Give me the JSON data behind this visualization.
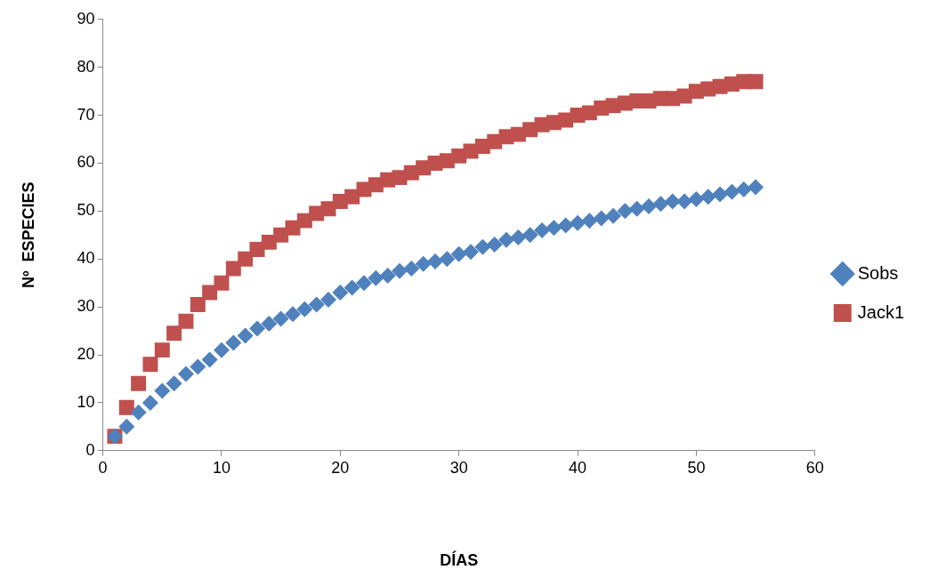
{
  "chart_data": {
    "type": "scatter",
    "xlabel": "DÍAS",
    "ylabel": "Nº  ESPECIES",
    "xlim": [
      0,
      60
    ],
    "xticks": [
      0,
      10,
      20,
      30,
      40,
      50,
      60
    ],
    "ylim": [
      0,
      90
    ],
    "yticks": [
      0,
      10,
      20,
      30,
      40,
      50,
      60,
      70,
      80,
      90
    ],
    "grid": false,
    "legend": "right",
    "x": [
      1,
      2,
      3,
      4,
      5,
      6,
      7,
      8,
      9,
      10,
      11,
      12,
      13,
      14,
      15,
      16,
      17,
      18,
      19,
      20,
      21,
      22,
      23,
      24,
      25,
      26,
      27,
      28,
      29,
      30,
      31,
      32,
      33,
      34,
      35,
      36,
      37,
      38,
      39,
      40,
      41,
      42,
      43,
      44,
      45,
      46,
      47,
      48,
      49,
      50,
      51,
      52,
      53,
      54,
      55
    ],
    "series": [
      {
        "name": "Sobs",
        "color": "#4f81bd",
        "marker": "diamond",
        "values": [
          3,
          5,
          8,
          10,
          12.5,
          14,
          16,
          17.5,
          19,
          21,
          22.5,
          24,
          25.5,
          26.5,
          27.5,
          28.5,
          29.5,
          30.5,
          31.5,
          33,
          34,
          35,
          36,
          36.5,
          37.5,
          38,
          39,
          39.5,
          40,
          41,
          41.5,
          42.5,
          43,
          44,
          44.5,
          45,
          46,
          46.5,
          47,
          47.5,
          48,
          48.5,
          49,
          50,
          50.5,
          51,
          51.5,
          52,
          52,
          52.5,
          53,
          53.5,
          54,
          54.5,
          55
        ]
      },
      {
        "name": "Jack1",
        "color": "#c0504d",
        "marker": "square",
        "values": [
          3,
          9,
          14,
          18,
          21,
          24.5,
          27,
          30.5,
          33,
          35,
          38,
          40,
          42,
          43.5,
          45,
          46.5,
          48,
          49.5,
          50.5,
          52,
          53,
          54.5,
          55.5,
          56.5,
          57,
          58,
          59,
          60,
          60.5,
          61.5,
          62.5,
          63.5,
          64.5,
          65.5,
          66,
          67,
          68,
          68.5,
          69,
          70,
          70.5,
          71.5,
          72,
          72.5,
          73,
          73,
          73.5,
          73.5,
          74,
          75,
          75.5,
          76,
          76.5,
          77,
          77
        ]
      }
    ]
  }
}
